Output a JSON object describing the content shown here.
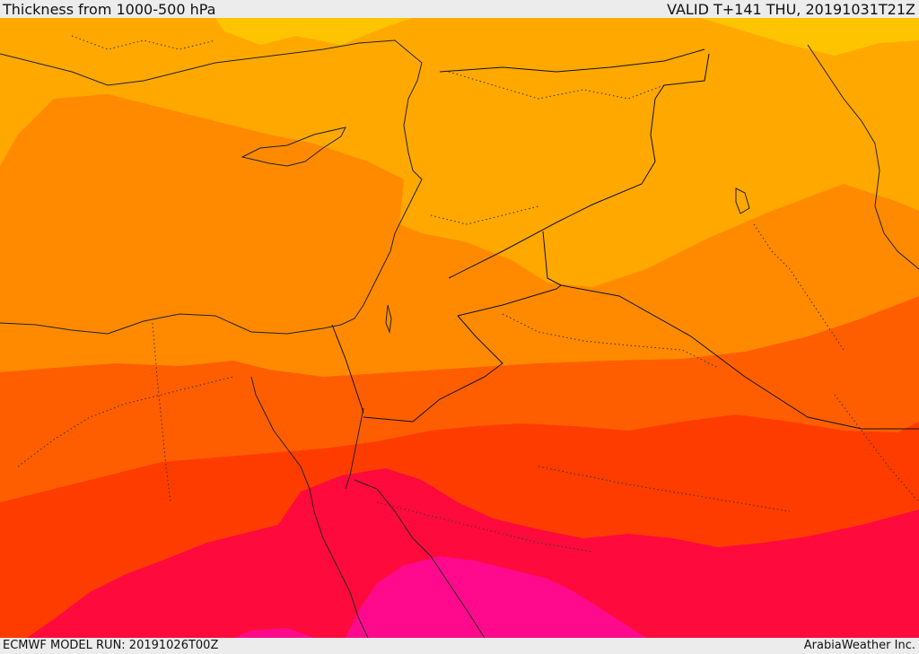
{
  "header": {
    "title": "Thickness from 1000-500 hPa",
    "valid": "VALID T+141 THU, 20191031T21Z"
  },
  "footer": {
    "model_run": "ECMWF MODEL RUN: 20191026T00Z",
    "credit": "ArabiaWeather Inc."
  },
  "palette": {
    "yellow": "#ffcc00",
    "light_orange": "#ffa800",
    "orange": "#ff8a00",
    "dark_orange": "#ff5e00",
    "red_orange": "#ff3c00",
    "crimson": "#ff0a3c",
    "magenta": "#ff0a8c"
  }
}
